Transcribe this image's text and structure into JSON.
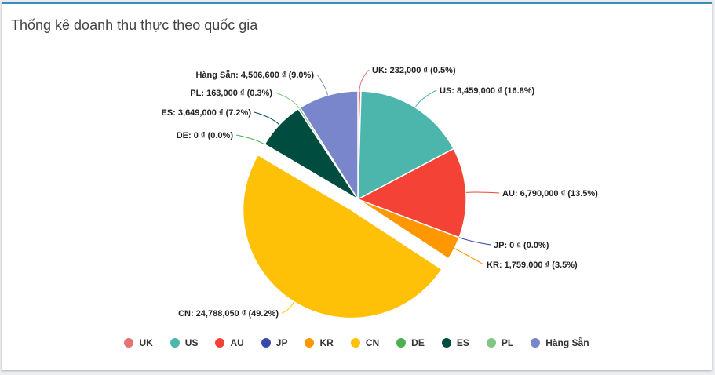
{
  "panel": {
    "title": "Thống kê doanh thu thực theo quốc gia"
  },
  "chart_data": {
    "type": "pie",
    "title": "",
    "currency_symbol": "₫",
    "slices": [
      {
        "name": "UK",
        "value": 232000,
        "percent": 0.5,
        "color": "#e57373",
        "label": "UK: 232,000 ₫ (0.5%)"
      },
      {
        "name": "US",
        "value": 8459000,
        "percent": 16.8,
        "color": "#4db6ac",
        "label": "US: 8,459,000 ₫ (16.8%)"
      },
      {
        "name": "AU",
        "value": 6790000,
        "percent": 13.5,
        "color": "#f44336",
        "label": "AU: 6,790,000 ₫ (13.5%)"
      },
      {
        "name": "JP",
        "value": 0,
        "percent": 0.0,
        "color": "#3949ab",
        "label": "JP: 0 ₫ (0.0%)"
      },
      {
        "name": "KR",
        "value": 1759000,
        "percent": 3.5,
        "color": "#ff9800",
        "label": "KR: 1,759,000 ₫ (3.5%)"
      },
      {
        "name": "CN",
        "value": 24788050,
        "percent": 49.2,
        "color": "#ffc107",
        "label": "CN: 24,788,050 ₫ (49.2%)",
        "exploded": true
      },
      {
        "name": "DE",
        "value": 0,
        "percent": 0.0,
        "color": "#4caf50",
        "label": "DE: 0 ₫ (0.0%)"
      },
      {
        "name": "ES",
        "value": 3649000,
        "percent": 7.2,
        "color": "#004d40",
        "label": "ES: 3,649,000 ₫ (7.2%)"
      },
      {
        "name": "PL",
        "value": 163000,
        "percent": 0.3,
        "color": "#81c784",
        "label": "PL: 163,000 ₫ (0.3%)"
      },
      {
        "name": "Hàng Sẵn",
        "value": 4506600,
        "percent": 9.0,
        "color": "#7986cb",
        "label": "Hàng Sẵn: 4,506,600 ₫ (9.0%)"
      }
    ],
    "legend_position": "bottom"
  }
}
